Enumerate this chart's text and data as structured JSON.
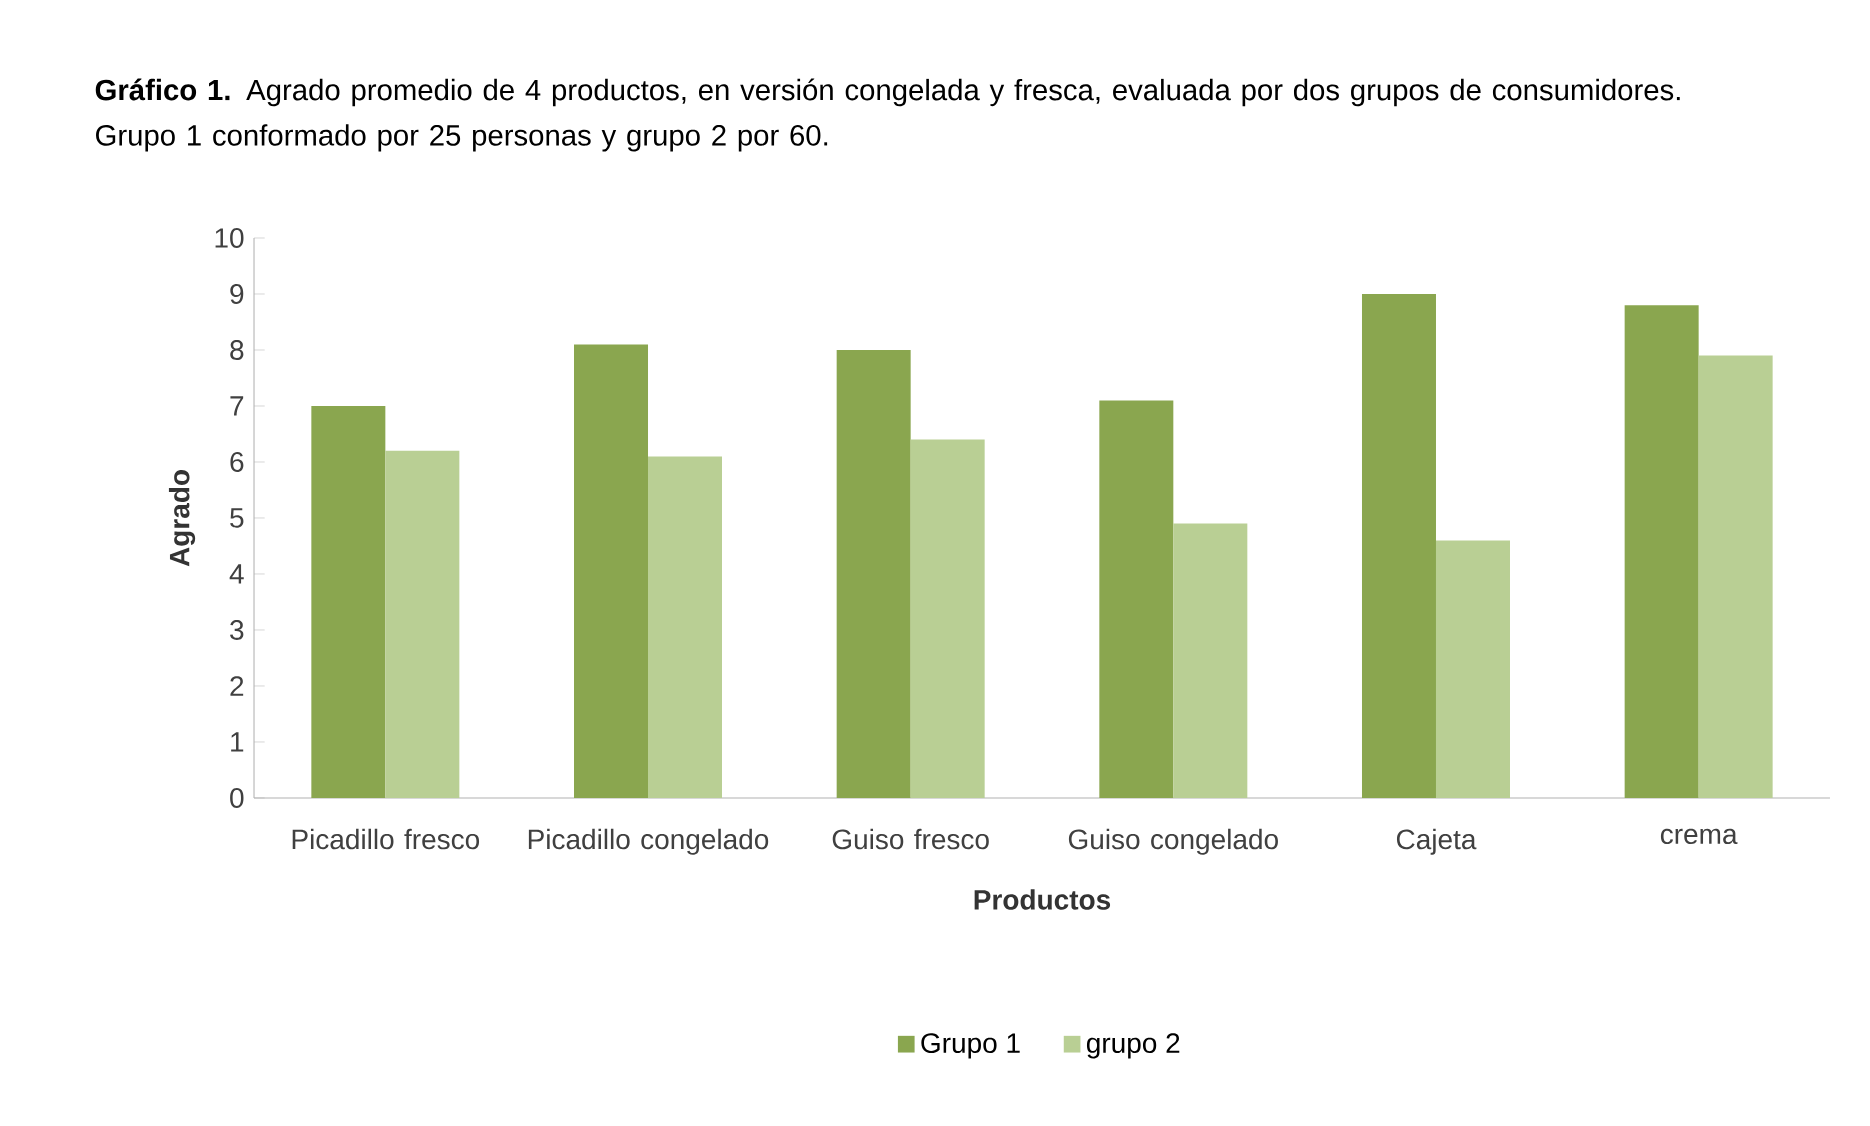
{
  "chart_data": {
    "type": "bar",
    "title": "**Gráfico 1.** Agrado promedio de 4 productos, en versión congelada y fresca, evaluada por dos grupos de consumidores. Grupo 1 conformado por 25 personas y grupo 2 por 60.",
    "xlabel": "Productos",
    "ylabel": "Agrado",
    "categories": [
      "Picadillo fresco",
      "Picadillo congelado",
      "Guiso fresco",
      "Guiso congelado",
      "Cajeta",
      "crema"
    ],
    "series": [
      {
        "name": "Grupo 1",
        "color": "#8aa64f",
        "values": [
          7.0,
          8.1,
          8.0,
          7.1,
          9.0,
          8.8
        ]
      },
      {
        "name": "grupo 2",
        "color": "#b9cf94",
        "values": [
          6.2,
          6.1,
          6.4,
          4.9,
          4.6,
          7.9
        ]
      }
    ],
    "ylim": [
      0,
      10
    ],
    "yticks": [
      0,
      1,
      2,
      3,
      4,
      5,
      6,
      7,
      8,
      9,
      10
    ],
    "legend": "bottom"
  }
}
